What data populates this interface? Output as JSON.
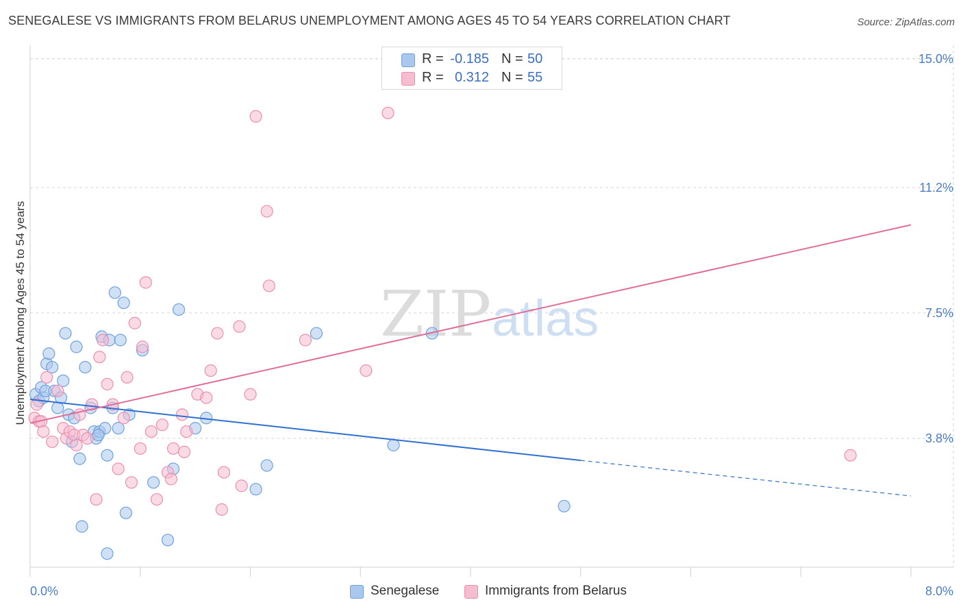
{
  "title": "SENEGALESE VS IMMIGRANTS FROM BELARUS UNEMPLOYMENT AMONG AGES 45 TO 54 YEARS CORRELATION CHART",
  "source": "Source: ZipAtlas.com",
  "watermark": {
    "zip": "ZIP",
    "atlas": "atlas"
  },
  "colors": {
    "blue_fill": "#aac8ee",
    "blue_stroke": "#6fa0dc",
    "blue_line": "#2e6fd0",
    "pink_fill": "#f6bcd0",
    "pink_stroke": "#eb8fb0",
    "pink_line": "#e06d98",
    "grid": "#d5d5d5",
    "tick_text": "#4a7cc9"
  },
  "legend_top": [
    {
      "r_label": "R =",
      "r_value": "-0.185",
      "n_label": "N =",
      "n_value": "50"
    },
    {
      "r_label": "R =",
      "r_value": "0.312",
      "n_label": "N =",
      "n_value": "55"
    }
  ],
  "legend_bottom": [
    "Senegalese",
    "Immigrants from Belarus"
  ],
  "chart_data": {
    "type": "scatter",
    "title": "SENEGALESE VS IMMIGRANTS FROM BELARUS UNEMPLOYMENT AMONG AGES 45 TO 54 YEARS CORRELATION CHART",
    "xlabel": "",
    "ylabel": "Unemployment Among Ages 45 to 54 years",
    "xlim": [
      0,
      8
    ],
    "ylim": [
      0,
      15.4
    ],
    "x_tick_labels": [
      "0.0%",
      "8.0%"
    ],
    "y_ticks": [
      3.8,
      7.5,
      11.2,
      15.0
    ],
    "y_tick_labels": [
      "3.8%",
      "7.5%",
      "11.2%",
      "15.0%"
    ],
    "grid": true,
    "series": [
      {
        "name": "Senegalese",
        "r": -0.185,
        "n": 50,
        "trend": {
          "x0": 0.0,
          "y0": 4.95,
          "x1": 5.0,
          "y1": 3.15,
          "dash_x1": 8.0,
          "dash_y1": 2.1
        },
        "points": [
          [
            0.05,
            5.1
          ],
          [
            0.08,
            4.9
          ],
          [
            0.1,
            5.3
          ],
          [
            0.12,
            5.0
          ],
          [
            0.14,
            5.2
          ],
          [
            0.15,
            6.0
          ],
          [
            0.17,
            6.3
          ],
          [
            0.2,
            5.9
          ],
          [
            0.22,
            5.2
          ],
          [
            0.25,
            4.7
          ],
          [
            0.28,
            5.0
          ],
          [
            0.3,
            5.5
          ],
          [
            0.32,
            6.9
          ],
          [
            0.35,
            4.5
          ],
          [
            0.38,
            3.7
          ],
          [
            0.4,
            4.4
          ],
          [
            0.42,
            6.5
          ],
          [
            0.45,
            3.2
          ],
          [
            0.47,
            1.2
          ],
          [
            0.5,
            5.9
          ],
          [
            0.55,
            4.7
          ],
          [
            0.58,
            4.0
          ],
          [
            0.6,
            3.8
          ],
          [
            0.63,
            4.0
          ],
          [
            0.65,
            6.8
          ],
          [
            0.68,
            4.1
          ],
          [
            0.7,
            0.4
          ],
          [
            0.7,
            3.3
          ],
          [
            0.72,
            6.7
          ],
          [
            0.75,
            4.7
          ],
          [
            0.77,
            8.1
          ],
          [
            0.8,
            4.1
          ],
          [
            0.82,
            6.7
          ],
          [
            0.85,
            7.8
          ],
          [
            0.87,
            1.6
          ],
          [
            0.9,
            4.5
          ],
          [
            1.02,
            6.4
          ],
          [
            1.12,
            2.5
          ],
          [
            1.25,
            0.8
          ],
          [
            1.3,
            2.9
          ],
          [
            1.35,
            7.6
          ],
          [
            1.5,
            4.1
          ],
          [
            1.6,
            4.4
          ],
          [
            2.05,
            2.3
          ],
          [
            2.15,
            3.0
          ],
          [
            2.6,
            6.9
          ],
          [
            3.3,
            3.6
          ],
          [
            3.65,
            6.9
          ],
          [
            4.85,
            1.8
          ],
          [
            0.62,
            3.9
          ]
        ]
      },
      {
        "name": "Immigrants from Belarus",
        "r": 0.312,
        "n": 55,
        "trend": {
          "x0": 0.0,
          "y0": 4.25,
          "x1": 8.0,
          "y1": 10.1
        },
        "points": [
          [
            0.04,
            4.4
          ],
          [
            0.06,
            4.8
          ],
          [
            0.08,
            4.3
          ],
          [
            0.1,
            4.3
          ],
          [
            0.12,
            4.0
          ],
          [
            0.15,
            5.6
          ],
          [
            0.2,
            3.7
          ],
          [
            0.25,
            5.2
          ],
          [
            0.3,
            4.1
          ],
          [
            0.33,
            3.8
          ],
          [
            0.36,
            4.0
          ],
          [
            0.4,
            3.9
          ],
          [
            0.42,
            3.6
          ],
          [
            0.45,
            4.5
          ],
          [
            0.48,
            3.9
          ],
          [
            0.52,
            3.8
          ],
          [
            0.56,
            4.8
          ],
          [
            0.6,
            2.0
          ],
          [
            0.63,
            6.2
          ],
          [
            0.66,
            6.7
          ],
          [
            0.7,
            5.4
          ],
          [
            0.75,
            4.8
          ],
          [
            0.8,
            2.9
          ],
          [
            0.85,
            4.4
          ],
          [
            0.88,
            5.6
          ],
          [
            0.92,
            2.5
          ],
          [
            0.95,
            7.2
          ],
          [
            1.0,
            3.5
          ],
          [
            1.02,
            6.5
          ],
          [
            1.05,
            8.4
          ],
          [
            1.1,
            4.0
          ],
          [
            1.15,
            2.0
          ],
          [
            1.2,
            4.2
          ],
          [
            1.25,
            2.8
          ],
          [
            1.28,
            2.6
          ],
          [
            1.3,
            3.5
          ],
          [
            1.38,
            4.5
          ],
          [
            1.4,
            3.4
          ],
          [
            1.42,
            4.0
          ],
          [
            1.52,
            5.1
          ],
          [
            1.6,
            5.0
          ],
          [
            1.64,
            5.8
          ],
          [
            1.7,
            6.9
          ],
          [
            1.74,
            1.7
          ],
          [
            1.76,
            2.8
          ],
          [
            1.9,
            7.1
          ],
          [
            1.92,
            2.4
          ],
          [
            2.0,
            5.1
          ],
          [
            2.05,
            13.3
          ],
          [
            2.15,
            10.5
          ],
          [
            2.17,
            8.3
          ],
          [
            2.5,
            6.7
          ],
          [
            3.05,
            5.8
          ],
          [
            3.25,
            13.4
          ],
          [
            7.45,
            3.3
          ]
        ]
      }
    ]
  }
}
